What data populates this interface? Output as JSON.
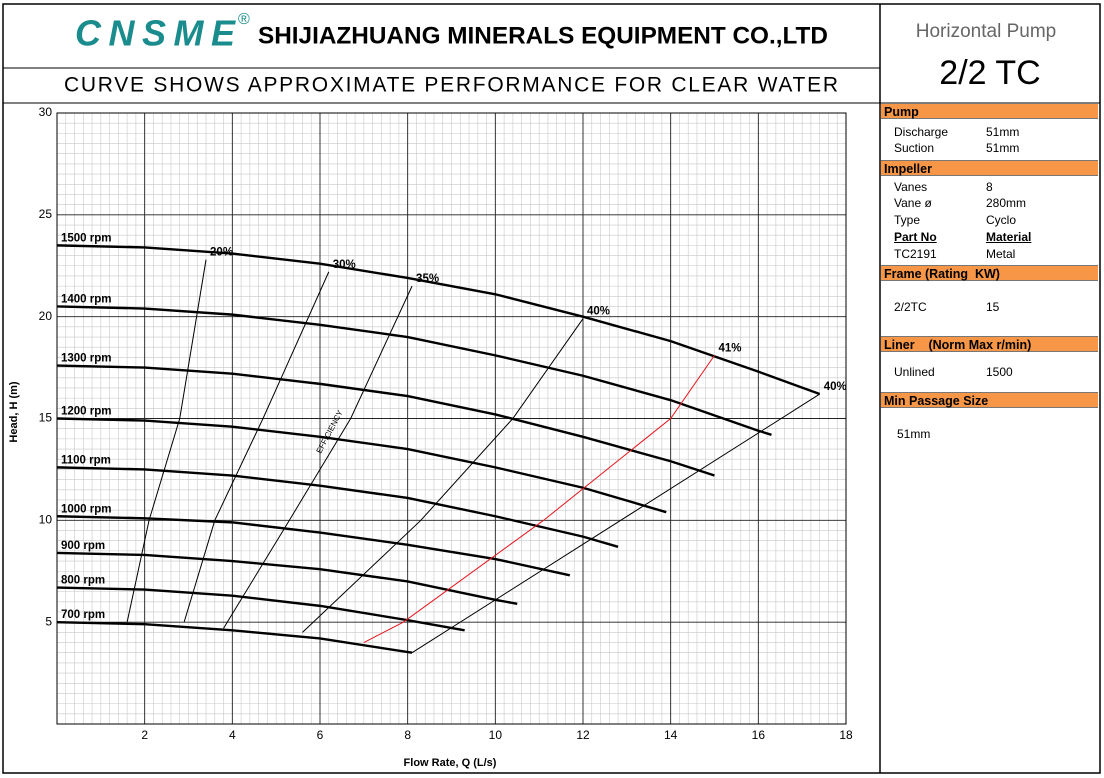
{
  "header": {
    "logo": "CNSME",
    "logo_mark": "®",
    "company": "SHIJIAZHUANG MINERALS EQUIPMENT CO.,LTD",
    "subtitle": "CURVE SHOWS APPROXIMATE PERFORMANCE FOR CLEAR WATER"
  },
  "panel": {
    "pump_type": "Horizontal Pump",
    "model": "2/2 TC",
    "sections": [
      {
        "title": "Pump",
        "rows": [
          [
            "Discharge",
            "51mm"
          ],
          [
            "Suction",
            "51mm"
          ]
        ]
      },
      {
        "title": "Impeller",
        "rows": [
          [
            "Vanes",
            "8"
          ],
          [
            "Vane ø",
            "280mm"
          ],
          [
            "Type",
            "Cyclo"
          ],
          [
            "Part No",
            "Material"
          ],
          [
            "TC2191",
            "Metal"
          ]
        ]
      },
      {
        "title": "Frame (Rating  KW)",
        "rows": [
          [
            "2/2TC",
            "15"
          ]
        ]
      },
      {
        "title": "Liner    (Norm Max r/min)",
        "rows": [
          [
            "Unlined",
            "1500"
          ]
        ]
      },
      {
        "title": "Min Passage Size",
        "rows": [
          [
            "51mm"
          ]
        ]
      }
    ]
  },
  "chart_data": {
    "type": "line",
    "x_label": "Flow Rate, Q (L/s)",
    "y_label": "Head, H (m)",
    "annotation": "EFFICIENCY",
    "xlim": [
      0,
      18
    ],
    "xticks": [
      2,
      4,
      6,
      8,
      10,
      12,
      14,
      16,
      18
    ],
    "ylim": [
      0,
      30
    ],
    "yticks": [
      5,
      10,
      15,
      20,
      25,
      30
    ],
    "grid": true,
    "minor_grid": true,
    "series": [
      {
        "name": "1500 rpm",
        "color": "#000000",
        "x": [
          0,
          2,
          4,
          6,
          8,
          10,
          12,
          14,
          16,
          17.4
        ],
        "values": [
          23.5,
          23.4,
          23.1,
          22.6,
          21.9,
          21.1,
          20.0,
          18.8,
          17.3,
          16.2
        ]
      },
      {
        "name": "1400 rpm",
        "color": "#000000",
        "x": [
          0,
          2,
          4,
          6,
          8,
          10,
          12,
          14,
          16,
          16.3
        ],
        "values": [
          20.5,
          20.4,
          20.1,
          19.6,
          19.0,
          18.1,
          17.1,
          15.9,
          14.4,
          14.2
        ]
      },
      {
        "name": "1300 rpm",
        "color": "#000000",
        "x": [
          0,
          2,
          4,
          6,
          8,
          10,
          12,
          14,
          15
        ],
        "values": [
          17.6,
          17.5,
          17.2,
          16.7,
          16.1,
          15.2,
          14.1,
          12.9,
          12.2
        ]
      },
      {
        "name": "1200 rpm",
        "color": "#000000",
        "x": [
          0,
          2,
          4,
          6,
          8,
          10,
          12,
          13.9
        ],
        "values": [
          15.0,
          14.9,
          14.6,
          14.1,
          13.5,
          12.6,
          11.6,
          10.4
        ]
      },
      {
        "name": "1100 rpm",
        "color": "#000000",
        "x": [
          0,
          2,
          4,
          6,
          8,
          10,
          12,
          12.8
        ],
        "values": [
          12.6,
          12.5,
          12.2,
          11.7,
          11.1,
          10.2,
          9.2,
          8.7
        ]
      },
      {
        "name": "1000 rpm",
        "color": "#000000",
        "x": [
          0,
          2,
          4,
          6,
          8,
          10,
          11.7
        ],
        "values": [
          10.2,
          10.1,
          9.9,
          9.4,
          8.8,
          8.1,
          7.3
        ]
      },
      {
        "name": "900 rpm",
        "color": "#000000",
        "x": [
          0,
          2,
          4,
          6,
          8,
          10,
          10.5
        ],
        "values": [
          8.4,
          8.3,
          8.0,
          7.6,
          7.0,
          6.1,
          5.9
        ]
      },
      {
        "name": "800 rpm",
        "color": "#000000",
        "x": [
          0,
          2,
          4,
          6,
          8,
          9.3
        ],
        "values": [
          6.7,
          6.6,
          6.3,
          5.8,
          5.1,
          4.6
        ]
      },
      {
        "name": "700 rpm",
        "color": "#000000",
        "x": [
          0,
          2,
          4,
          6,
          8.1
        ],
        "values": [
          5.0,
          4.9,
          4.6,
          4.2,
          3.5
        ]
      }
    ],
    "efficiency_series": [
      {
        "name": "20%",
        "color": "#000000",
        "x": [
          1.6,
          2.1,
          2.8,
          3.4
        ],
        "values": [
          5.0,
          10,
          15,
          22.8
        ]
      },
      {
        "name": "30%",
        "color": "#000000",
        "x": [
          2.9,
          3.6,
          4.7,
          6.2
        ],
        "values": [
          5.0,
          10,
          15,
          22.2
        ]
      },
      {
        "name": "35%",
        "color": "#000000",
        "x": [
          3.8,
          5.3,
          6.7,
          8.1
        ],
        "values": [
          4.7,
          10,
          15,
          21.5
        ]
      },
      {
        "name": "40%",
        "color": "#000000",
        "x": [
          5.6,
          8.3,
          10.4,
          12
        ],
        "values": [
          4.5,
          10,
          15,
          19.9
        ]
      },
      {
        "name": "41%",
        "color": "#e8141c",
        "x": [
          7.0,
          7.9,
          11.1,
          14.0,
          15
        ],
        "values": [
          4.0,
          5,
          10,
          15,
          18.1
        ]
      },
      {
        "name": "40%",
        "color": "#000000",
        "x": [
          8.1,
          17.4
        ],
        "values": [
          3.5,
          16.2
        ]
      }
    ]
  }
}
